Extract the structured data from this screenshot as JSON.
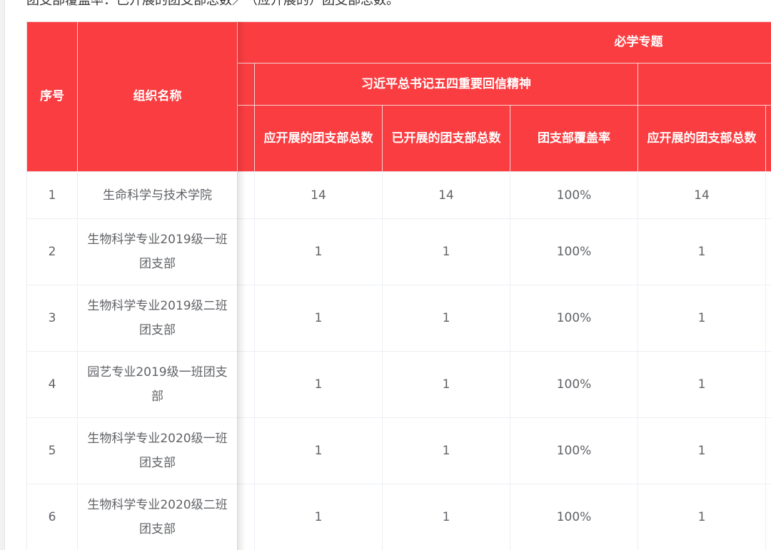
{
  "note": "团支部覆盖率：已开展的团支部总数／（应开展的）团支部总数。",
  "colors": {
    "header_bg": "#fa3d41",
    "header_text": "#ffffff",
    "cell_text": "#606266"
  },
  "header": {
    "index": "序号",
    "org_name": "组织名称",
    "required_topics": "必学专题",
    "topic1": "习近平总书记五四重要回信精神",
    "sub": [
      "应开展的团支部总数",
      "已开展的团支部总数",
      "团支部覆盖率",
      "应开展的团支部总数"
    ]
  },
  "rows": [
    {
      "index": "1",
      "name": "生命科学与技术学院",
      "v": [
        "14",
        "14",
        "100%",
        "14"
      ]
    },
    {
      "index": "2",
      "name": "生物科学专业2019级一班团支部",
      "v": [
        "1",
        "1",
        "100%",
        "1"
      ]
    },
    {
      "index": "3",
      "name": "生物科学专业2019级二班团支部",
      "v": [
        "1",
        "1",
        "100%",
        "1"
      ]
    },
    {
      "index": "4",
      "name": "园艺专业2019级一班团支部",
      "v": [
        "1",
        "1",
        "100%",
        "1"
      ]
    },
    {
      "index": "5",
      "name": "生物科学专业2020级一班团支部",
      "v": [
        "1",
        "1",
        "100%",
        "1"
      ]
    },
    {
      "index": "6",
      "name": "生物科学专业2020级二班团支部",
      "v": [
        "1",
        "1",
        "100%",
        "1"
      ]
    }
  ]
}
